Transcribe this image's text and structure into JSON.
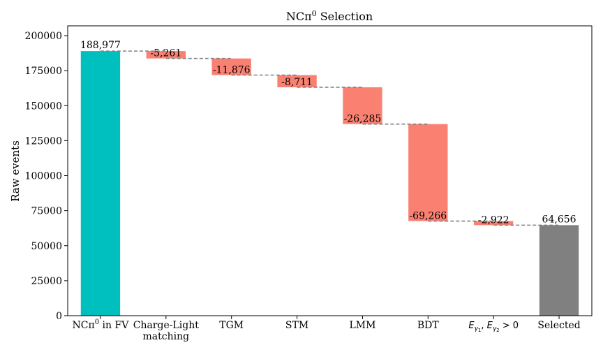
{
  "chart_data": {
    "type": "bar",
    "subtype": "waterfall",
    "title_main": "NCπ",
    "title_sup": "0",
    "title_rest": " Selection",
    "ylabel": "Raw events",
    "ylim": [
      0,
      207000
    ],
    "yticks": [
      0,
      25000,
      50000,
      75000,
      100000,
      125000,
      150000,
      175000,
      200000
    ],
    "grid": false,
    "colors": {
      "initial": "#00bfbf",
      "decrease": "#fa8072",
      "final": "#808080",
      "connector": "#808080"
    },
    "categories": [
      {
        "main": "NCπ",
        "sup": "0",
        "rest": " in FV"
      },
      {
        "line1": "Charge-Light",
        "line2": "matching"
      },
      {
        "main": "TGM"
      },
      {
        "main": "STM"
      },
      {
        "main": "LMM"
      },
      {
        "main": "BDT"
      },
      {
        "eq": true,
        "e1": "E",
        "g1": "γ",
        "s1": "1",
        "sep": ", ",
        "e2": "E",
        "g2": "γ",
        "s2": "2",
        "tail": " > 0"
      },
      {
        "main": "Selected"
      }
    ],
    "bars": [
      {
        "kind": "initial",
        "bottom": 0,
        "top": 188977,
        "label": "188,977"
      },
      {
        "kind": "decrease",
        "bottom": 183716,
        "top": 188977,
        "label": "-5,261"
      },
      {
        "kind": "decrease",
        "bottom": 171840,
        "top": 183716,
        "label": "-11,876"
      },
      {
        "kind": "decrease",
        "bottom": 163129,
        "top": 171840,
        "label": "-8,711"
      },
      {
        "kind": "decrease",
        "bottom": 136844,
        "top": 163129,
        "label": "-26,285"
      },
      {
        "kind": "decrease",
        "bottom": 67578,
        "top": 136844,
        "label": "-69,266"
      },
      {
        "kind": "decrease",
        "bottom": 64656,
        "top": 67578,
        "label": "-2,922"
      },
      {
        "kind": "final",
        "bottom": 0,
        "top": 64656,
        "label": "64,656"
      }
    ]
  }
}
